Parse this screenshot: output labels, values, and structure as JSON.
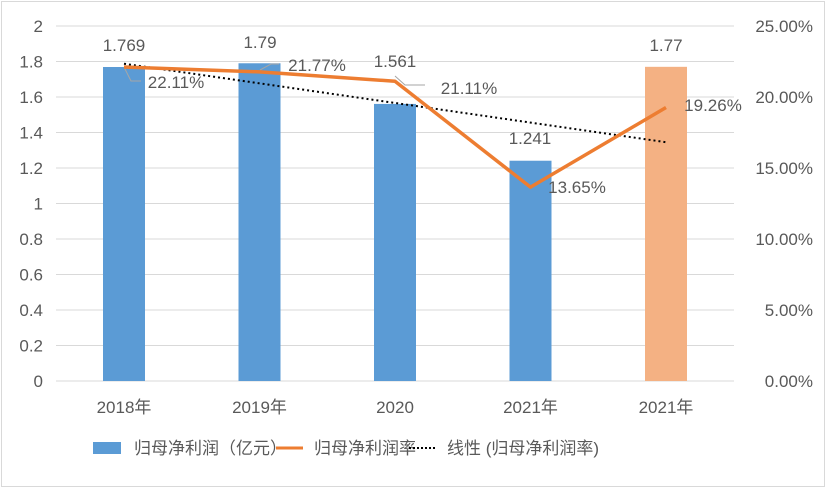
{
  "chart_data": {
    "type": "bar+line",
    "categories": [
      "2018年",
      "2019年",
      "2020",
      "2021年",
      "2021年"
    ],
    "series": [
      {
        "name": "归母净利润（亿元）",
        "type": "bar",
        "axis": "left",
        "values": [
          1.769,
          1.79,
          1.561,
          1.241,
          1.77
        ],
        "labels": [
          "1.769",
          "1.79",
          "1.561",
          "1.241",
          "1.77"
        ],
        "colors": [
          "#5B9BD5",
          "#5B9BD5",
          "#5B9BD5",
          "#5B9BD5",
          "#F4B183"
        ]
      },
      {
        "name": "归母净利润率",
        "type": "line",
        "axis": "right",
        "values": [
          22.11,
          21.77,
          21.11,
          13.65,
          19.26
        ],
        "labels": [
          "22.11%",
          "21.77%",
          "21.11%",
          "13.65%",
          "19.26%"
        ],
        "color": "#ED7D31"
      },
      {
        "name": "线性 (归母净利润率)",
        "type": "linear-trendline",
        "axis": "right",
        "of": "归母净利润率",
        "color": "#000000"
      }
    ],
    "left_axis": {
      "range": [
        0,
        2
      ],
      "ticks": [
        "0",
        "0.2",
        "0.4",
        "0.6",
        "0.8",
        "1",
        "1.2",
        "1.4",
        "1.6",
        "1.8",
        "2"
      ]
    },
    "right_axis": {
      "range": [
        0,
        25
      ],
      "ticks": [
        "0.00%",
        "5.00%",
        "10.00%",
        "15.00%",
        "20.00%",
        "25.00%"
      ]
    },
    "grid": true,
    "legend": "bottom"
  }
}
